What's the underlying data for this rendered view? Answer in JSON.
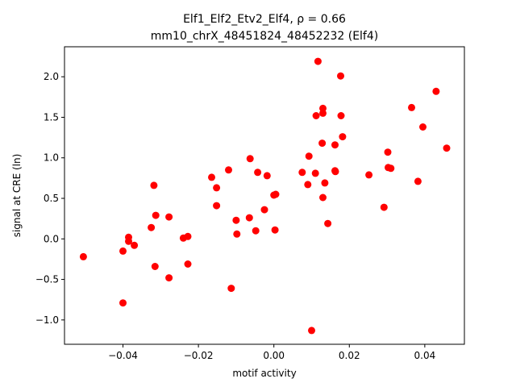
{
  "chart_data": {
    "type": "scatter",
    "title_line1": "Elf1_Elf2_Etv2_Elf4, ρ = 0.66",
    "title_line2": "mm10_chrX_48451824_48452232 (Elf4)",
    "xlabel": "motif activity",
    "ylabel": "signal at CRE (ln)",
    "xlim": [
      -0.0555,
      0.0505
    ],
    "ylim": [
      -1.3,
      2.37
    ],
    "x_ticks": [
      -0.04,
      -0.02,
      0.0,
      0.02,
      0.04
    ],
    "x_tick_labels": [
      "−0.04",
      "−0.02",
      "0.00",
      "0.02",
      "0.04"
    ],
    "y_ticks": [
      -1.0,
      -0.5,
      0.0,
      0.5,
      1.0,
      1.5,
      2.0
    ],
    "y_tick_labels": [
      "−1.0",
      "−0.5",
      "0.0",
      "0.5",
      "1.0",
      "1.5",
      "2.0"
    ],
    "grid": false,
    "marker_color": "#ff0000",
    "points": [
      {
        "x": -0.0505,
        "y": -0.22
      },
      {
        "x": -0.04,
        "y": -0.79
      },
      {
        "x": -0.04,
        "y": -0.15
      },
      {
        "x": -0.0385,
        "y": 0.02
      },
      {
        "x": -0.0385,
        "y": -0.03
      },
      {
        "x": -0.037,
        "y": -0.08
      },
      {
        "x": -0.0325,
        "y": 0.14
      },
      {
        "x": -0.0318,
        "y": 0.66
      },
      {
        "x": -0.0313,
        "y": 0.29
      },
      {
        "x": -0.0315,
        "y": -0.34
      },
      {
        "x": -0.0278,
        "y": 0.27
      },
      {
        "x": -0.0278,
        "y": -0.48
      },
      {
        "x": -0.024,
        "y": 0.01
      },
      {
        "x": -0.0228,
        "y": 0.03
      },
      {
        "x": -0.0228,
        "y": -0.31
      },
      {
        "x": -0.0165,
        "y": 0.76
      },
      {
        "x": -0.0152,
        "y": 0.63
      },
      {
        "x": -0.0152,
        "y": 0.41
      },
      {
        "x": -0.012,
        "y": 0.85
      },
      {
        "x": -0.0113,
        "y": -0.61
      },
      {
        "x": -0.01,
        "y": 0.23
      },
      {
        "x": -0.0098,
        "y": 0.06
      },
      {
        "x": -0.0065,
        "y": 0.26
      },
      {
        "x": -0.0063,
        "y": 0.99
      },
      {
        "x": -0.0048,
        "y": 0.1
      },
      {
        "x": -0.0043,
        "y": 0.82
      },
      {
        "x": -0.0025,
        "y": 0.36
      },
      {
        "x": -0.0018,
        "y": 0.78
      },
      {
        "x": 0.0,
        "y": 0.54
      },
      {
        "x": 0.0003,
        "y": 0.11
      },
      {
        "x": 0.0005,
        "y": 0.55
      },
      {
        "x": 0.0075,
        "y": 0.82
      },
      {
        "x": 0.009,
        "y": 0.67
      },
      {
        "x": 0.0093,
        "y": 1.02
      },
      {
        "x": 0.01,
        "y": -1.13
      },
      {
        "x": 0.011,
        "y": 0.81
      },
      {
        "x": 0.0112,
        "y": 1.52
      },
      {
        "x": 0.0117,
        "y": 2.19
      },
      {
        "x": 0.0128,
        "y": 1.18
      },
      {
        "x": 0.013,
        "y": 1.55
      },
      {
        "x": 0.013,
        "y": 1.61
      },
      {
        "x": 0.013,
        "y": 0.51
      },
      {
        "x": 0.0135,
        "y": 0.69
      },
      {
        "x": 0.0143,
        "y": 0.19
      },
      {
        "x": 0.0162,
        "y": 1.16
      },
      {
        "x": 0.0162,
        "y": 0.84
      },
      {
        "x": 0.0163,
        "y": 0.83
      },
      {
        "x": 0.0177,
        "y": 2.01
      },
      {
        "x": 0.0178,
        "y": 1.52
      },
      {
        "x": 0.0182,
        "y": 1.26
      },
      {
        "x": 0.0252,
        "y": 0.79
      },
      {
        "x": 0.0292,
        "y": 0.39
      },
      {
        "x": 0.0302,
        "y": 1.07
      },
      {
        "x": 0.0303,
        "y": 0.88
      },
      {
        "x": 0.031,
        "y": 0.87
      },
      {
        "x": 0.0365,
        "y": 1.62
      },
      {
        "x": 0.0382,
        "y": 0.71
      },
      {
        "x": 0.0395,
        "y": 1.38
      },
      {
        "x": 0.043,
        "y": 1.82
      },
      {
        "x": 0.0458,
        "y": 1.12
      }
    ]
  }
}
